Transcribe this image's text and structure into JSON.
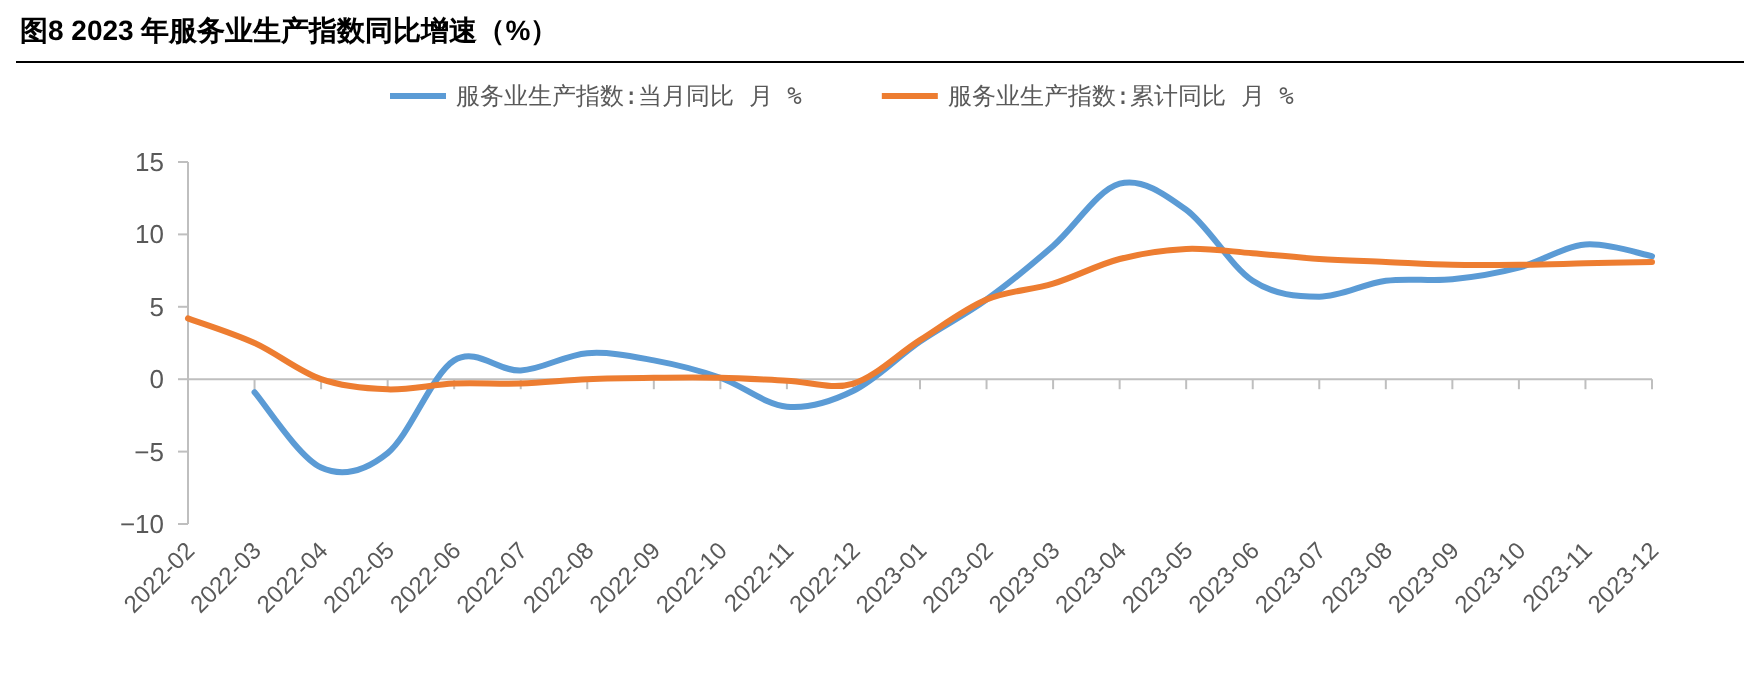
{
  "chart_data": {
    "type": "line",
    "title": "图8  2023 年服务业生产指数同比增速（%）",
    "categories": [
      "2022-02",
      "2022-03",
      "2022-04",
      "2022-05",
      "2022-06",
      "2022-07",
      "2022-08",
      "2022-09",
      "2022-10",
      "2022-11",
      "2022-12",
      "2023-01",
      "2023-02",
      "2023-03",
      "2023-04",
      "2023-05",
      "2023-06",
      "2023-07",
      "2023-08",
      "2023-09",
      "2023-10",
      "2023-11",
      "2023-12"
    ],
    "series": [
      {
        "name": "服务业生产指数:当月同比 月 %",
        "color": "#5b9bd5",
        "values": [
          null,
          -0.9,
          -6.1,
          -5.1,
          1.3,
          0.6,
          1.8,
          1.3,
          0.1,
          -1.9,
          -0.8,
          2.6,
          5.5,
          9.2,
          13.5,
          11.7,
          6.8,
          5.7,
          6.8,
          6.9,
          7.7,
          9.3,
          8.5
        ]
      },
      {
        "name": "服务业生产指数:累计同比 月 %",
        "color": "#ed7d31",
        "values": [
          4.2,
          2.5,
          0.0,
          -0.7,
          -0.3,
          -0.3,
          0.0,
          0.1,
          0.1,
          -0.1,
          -0.3,
          2.7,
          5.5,
          6.6,
          8.3,
          9.0,
          8.7,
          8.3,
          8.1,
          7.9,
          7.9,
          8.0,
          8.1
        ]
      }
    ],
    "ylim": [
      -10,
      15
    ],
    "yticks": [
      {
        "value": -10,
        "label": "−10"
      },
      {
        "value": -5,
        "label": "−5"
      },
      0,
      5,
      10,
      15
    ],
    "legend": "top",
    "marker": "none",
    "line_style": "solid"
  }
}
